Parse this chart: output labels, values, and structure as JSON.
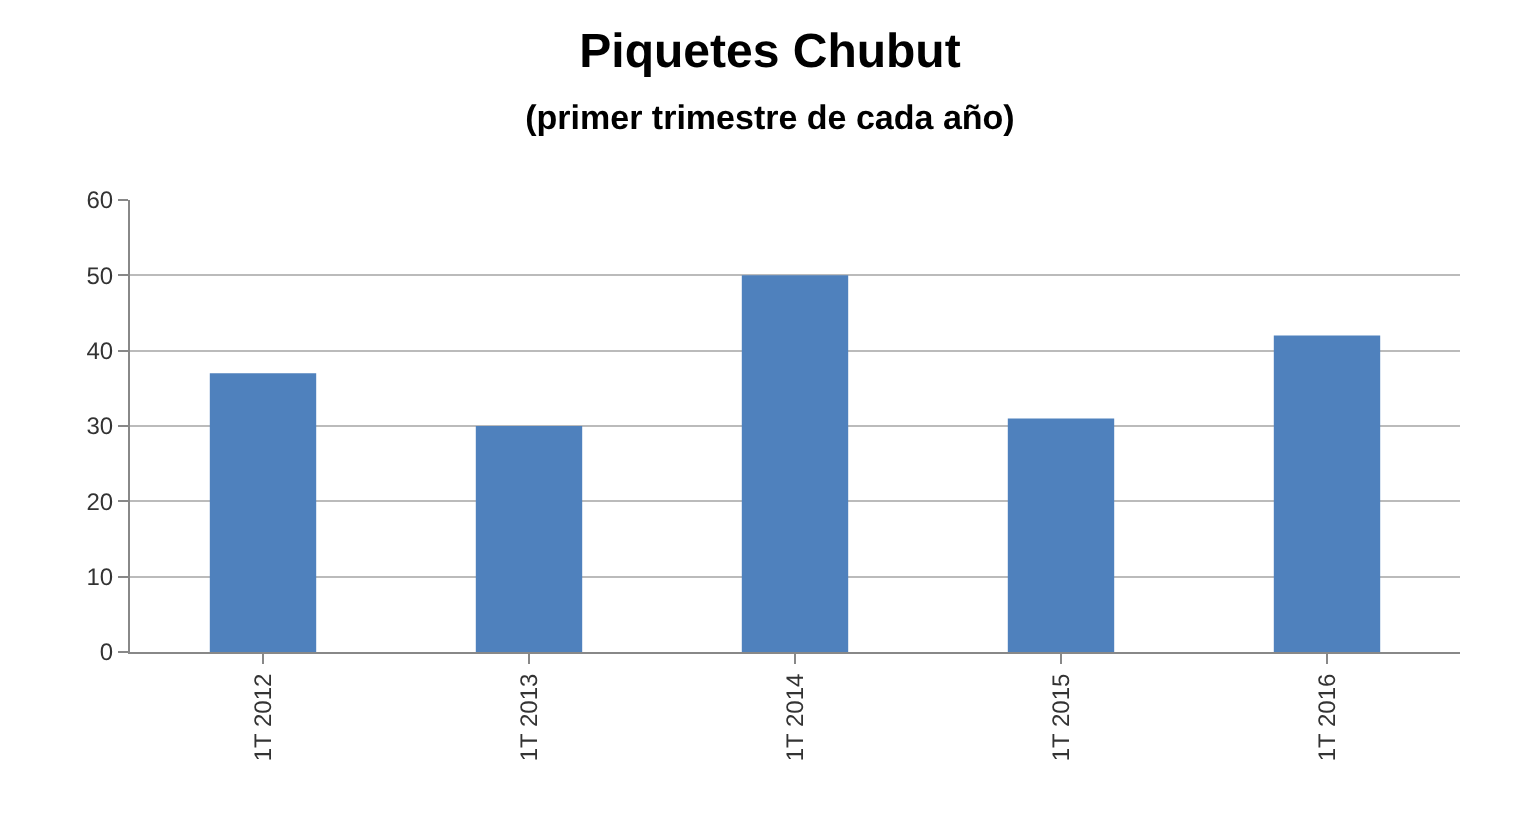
{
  "chart_data": {
    "type": "bar",
    "title": "Piquetes Chubut",
    "subtitle": "(primer trimestre de cada año)",
    "categories": [
      "1T 2012",
      "1T 2013",
      "1T 2014",
      "1T 2015",
      "1T 2016"
    ],
    "values": [
      37,
      30,
      50,
      31,
      42
    ],
    "color": "#4f81bd",
    "ylim": [
      0,
      60
    ],
    "yticks": [
      0,
      10,
      20,
      30,
      40,
      50,
      60
    ],
    "grid": "y"
  }
}
